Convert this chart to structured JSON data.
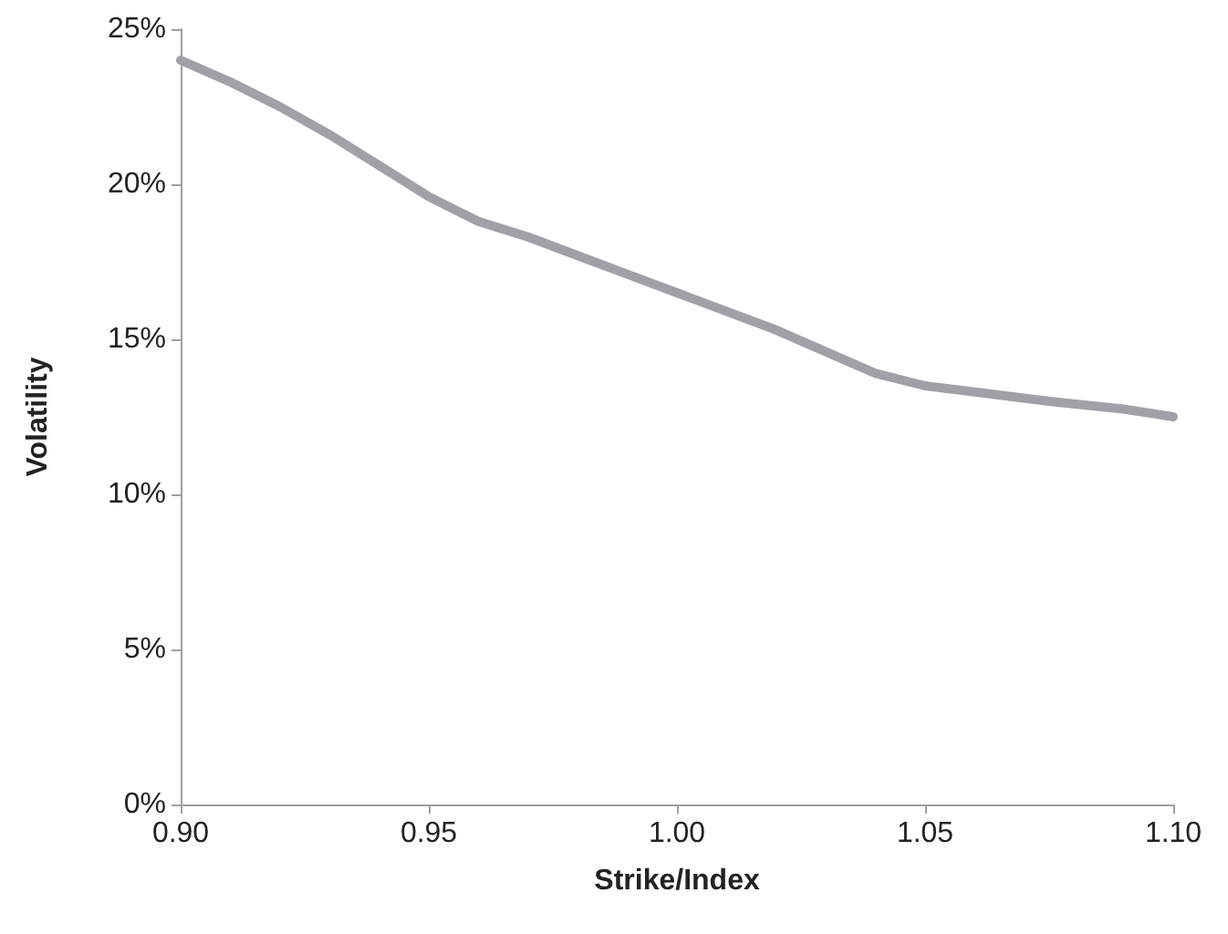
{
  "chart_data": {
    "type": "line",
    "xlabel": "Strike/Index",
    "ylabel": "Volatility",
    "x": [
      0.9,
      0.91,
      0.92,
      0.93,
      0.94,
      0.95,
      0.96,
      0.97,
      0.98,
      0.99,
      1.0,
      1.01,
      1.02,
      1.03,
      1.04,
      1.05,
      1.06,
      1.075,
      1.09,
      1.1
    ],
    "series": [
      {
        "color": "#a0a1a5",
        "values": [
          24.0,
          23.3,
          22.5,
          21.6,
          20.6,
          19.6,
          18.8,
          18.3,
          17.7,
          17.1,
          16.5,
          15.9,
          15.3,
          14.6,
          13.9,
          13.5,
          13.3,
          13.0,
          12.75,
          12.5
        ]
      }
    ],
    "xlim": [
      0.9,
      1.1
    ],
    "xticks": [
      {
        "value": 0.9,
        "label": "0.90"
      },
      {
        "value": 0.95,
        "label": "0.95"
      },
      {
        "value": 1.0,
        "label": "1.00"
      },
      {
        "value": 1.05,
        "label": "1.05"
      },
      {
        "value": 1.1,
        "label": "1.10"
      }
    ],
    "ylim": [
      0,
      25
    ],
    "yticks": [
      {
        "value": 0,
        "label": "0%"
      },
      {
        "value": 5,
        "label": "5%"
      },
      {
        "value": 10,
        "label": "10%"
      },
      {
        "value": 15,
        "label": "15%"
      },
      {
        "value": 20,
        "label": "20%"
      },
      {
        "value": 25,
        "label": "25%"
      }
    ],
    "grid": false,
    "marker": "none",
    "line_style": "solid"
  }
}
